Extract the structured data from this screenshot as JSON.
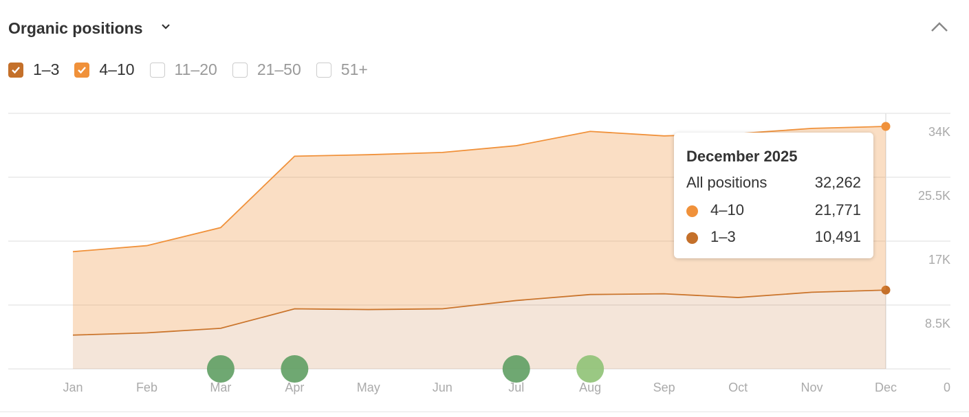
{
  "header": {
    "title": "Organic positions",
    "filters": [
      "11–20",
      "21–50",
      "51+"
    ]
  },
  "chart_data": {
    "type": "stacked-area",
    "categories": [
      "Jan",
      "Feb",
      "Mar",
      "Apr",
      "May",
      "Jun",
      "Jul",
      "Aug",
      "Sep",
      "Oct",
      "Nov",
      "Dec"
    ],
    "series": [
      {
        "name": "1–3",
        "color": "#c4702a",
        "values": [
          4500,
          4800,
          5400,
          8000,
          7900,
          8000,
          9100,
          9900,
          10000,
          9500,
          10200,
          10491
        ],
        "value_labels": [
          null,
          null,
          null,
          null,
          null,
          null,
          null,
          null,
          null,
          null,
          null,
          "10,491"
        ]
      },
      {
        "name": "4–10",
        "color": "#f0913a",
        "values": [
          11100,
          11600,
          13400,
          20300,
          20600,
          20800,
          20600,
          21700,
          21000,
          21800,
          21800,
          21771
        ],
        "value_labels": [
          null,
          null,
          null,
          null,
          null,
          null,
          null,
          null,
          null,
          null,
          null,
          "21,771"
        ]
      }
    ],
    "ylim": [
      0,
      34000
    ],
    "yticks": [
      0,
      {
        "value": 8500,
        "label": "8.5K"
      },
      {
        "value": 17000,
        "label": "17K"
      },
      {
        "value": 25500,
        "label": "25.5K"
      },
      {
        "value": 34000,
        "label": "34K"
      }
    ],
    "grid": true,
    "events": [
      {
        "category": "Mar",
        "color": "#5f9e63"
      },
      {
        "category": "Apr",
        "color": "#5f9e63"
      },
      {
        "category": "Jul",
        "color": "#5f9e63"
      },
      {
        "category": "Aug",
        "color": "#8fc276"
      }
    ],
    "tooltip": {
      "title": "December 2025",
      "total_name": "All positions",
      "total": {
        "value": 32262,
        "label": "32,262"
      }
    }
  }
}
